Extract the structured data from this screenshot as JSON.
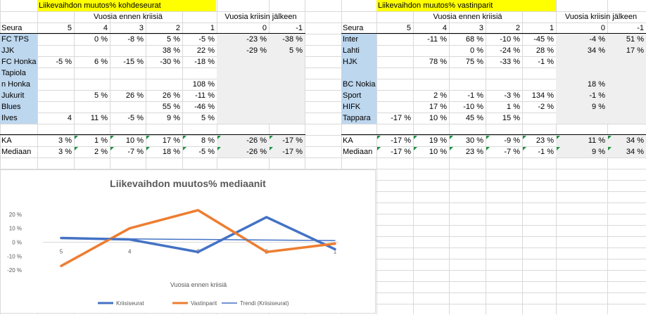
{
  "left": {
    "title": "Liikevaihdon muutos% kohdeseurat",
    "header_before": "Vuosia ennen kriisiä",
    "header_after": "Vuosia kriisin jälkeen",
    "col_labels": [
      "Seura",
      "5",
      "4",
      "3",
      "2",
      "1",
      "0",
      "-1"
    ],
    "rows": [
      {
        "name": "FC TPS",
        "vals": [
          "",
          "0 %",
          "-8 %",
          "5 %",
          "-5 %",
          "-23 %",
          "-38 %"
        ]
      },
      {
        "name": "JJK",
        "vals": [
          "",
          "",
          "",
          "38 %",
          "22 %",
          "-29 %",
          "5 %"
        ]
      },
      {
        "name": "FC Honka",
        "vals": [
          "-5 %",
          "6 %",
          "-15 %",
          "-30 %",
          "-18 %",
          "",
          ""
        ]
      },
      {
        "name": "Tapiola",
        "vals": [
          "",
          "",
          "",
          "",
          "",
          "",
          ""
        ]
      },
      {
        "name": "n Honka",
        "vals": [
          "",
          "",
          "",
          "",
          "108 %",
          "",
          ""
        ]
      },
      {
        "name": "Jukurit",
        "vals": [
          "",
          "5 %",
          "26 %",
          "26 %",
          "-11 %",
          "",
          ""
        ]
      },
      {
        "name": "Blues",
        "vals": [
          "",
          "",
          "",
          "55 %",
          "-46 %",
          "",
          ""
        ]
      },
      {
        "name": "Ilves",
        "vals": [
          "4",
          "11 %",
          "-5 %",
          "9 %",
          "5 %",
          "",
          ""
        ]
      }
    ],
    "summary": [
      {
        "name": "KA",
        "vals": [
          "3 %",
          "1 %",
          "10 %",
          "17 %",
          "8 %",
          "-26 %",
          "-17 %"
        ]
      },
      {
        "name": "Mediaan",
        "vals": [
          "3 %",
          "2 %",
          "-7 %",
          "18 %",
          "-5 %",
          "-26 %",
          "-17 %"
        ]
      }
    ]
  },
  "right": {
    "title": "Liikevaihdon muutos% vastinparit",
    "header_before": "Vuosia ennen kriisiä",
    "header_after": "Vuosia kriisin jälkeen",
    "col_labels": [
      "Seura",
      "5",
      "4",
      "3",
      "2",
      "1",
      "0",
      "-1"
    ],
    "rows": [
      {
        "name": "Inter",
        "vals": [
          "",
          "-11 %",
          "68 %",
          "-10 %",
          "-45 %",
          "-4 %",
          "51 %"
        ]
      },
      {
        "name": "Lahti",
        "vals": [
          "",
          "",
          "0 %",
          "-24 %",
          "28 %",
          "34 %",
          "17 %"
        ]
      },
      {
        "name": "HJK",
        "vals": [
          "",
          "78 %",
          "75 %",
          "-33 %",
          "-1 %",
          "",
          ""
        ]
      },
      {
        "name": "",
        "vals": [
          "",
          "",
          "",
          "",
          "",
          "",
          ""
        ]
      },
      {
        "name": "BC Nokia",
        "vals": [
          "",
          "",
          "",
          "",
          "",
          "18 %",
          ""
        ]
      },
      {
        "name": "Sport",
        "vals": [
          "",
          "2 %",
          "-1 %",
          "-3 %",
          "134 %",
          "-1 %",
          ""
        ]
      },
      {
        "name": "HIFK",
        "vals": [
          "",
          "17 %",
          "-10 %",
          "1 %",
          "-2 %",
          "9 %",
          ""
        ]
      },
      {
        "name": "Tappara",
        "vals": [
          "-17 %",
          "10 %",
          "45 %",
          "15 %",
          "",
          "",
          ""
        ]
      }
    ],
    "summary": [
      {
        "name": "KA",
        "vals": [
          "-17 %",
          "19 %",
          "30 %",
          "-9 %",
          "23 %",
          "11 %",
          "34 %"
        ]
      },
      {
        "name": "Mediaan",
        "vals": [
          "-17 %",
          "10 %",
          "23 %",
          "-7 %",
          "-1 %",
          "9 %",
          "34 %"
        ]
      }
    ]
  },
  "chart_data": {
    "type": "line",
    "title": "Liikevaihdon muutos% mediaanit",
    "xlabel": "Vuosia ennen kriisiä",
    "ylabel": "",
    "categories": [
      "5",
      "4",
      "3",
      "2",
      "1"
    ],
    "yticks": [
      "20 %",
      "10 %",
      "0 %",
      "-10 %",
      "-20 %"
    ],
    "ylim": [
      -25,
      25
    ],
    "grid": false,
    "legend_position": "bottom",
    "series": [
      {
        "name": "Kriisiseurat",
        "color": "#4472c4",
        "values": [
          3,
          2,
          -7,
          18,
          -5
        ]
      },
      {
        "name": "Vastinparit",
        "color": "#ed7d31",
        "values": [
          -17,
          10,
          23,
          -7,
          -1
        ]
      },
      {
        "name": "Trendi (Kriisiseurat)",
        "color": "#4472c4",
        "values": [
          2.8,
          2.4,
          2.0,
          1.6,
          1.2
        ],
        "trend": true
      }
    ]
  }
}
